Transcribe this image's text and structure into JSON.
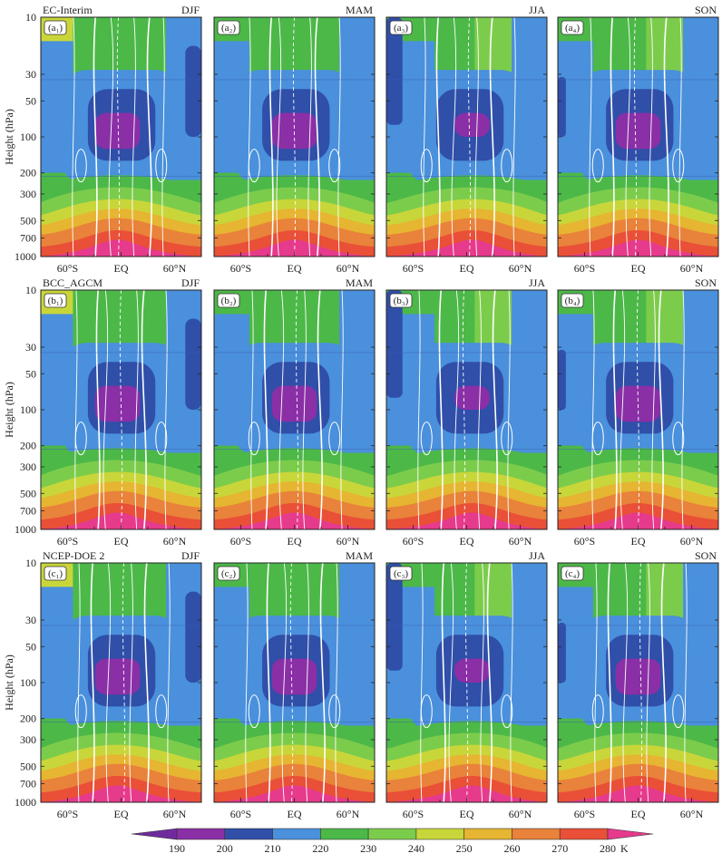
{
  "chart_data": {
    "type": "heatmap",
    "description_rows": [
      {
        "row_title": "EC-Interim",
        "panels": [
          {
            "label": "(a₁)",
            "season": "DJF"
          },
          {
            "label": "(a₂)",
            "season": "MAM"
          },
          {
            "label": "(a₃)",
            "season": "JJA"
          },
          {
            "label": "(a₄)",
            "season": "SON"
          }
        ]
      },
      {
        "row_title": "BCC_AGCM",
        "panels": [
          {
            "label": "(b₁)",
            "season": "DJF"
          },
          {
            "label": "(b₂)",
            "season": "MAM"
          },
          {
            "label": "(b₃)",
            "season": "JJA"
          },
          {
            "label": "(b₄)",
            "season": "SON"
          }
        ]
      },
      {
        "row_title": "NCEP-DOE 2",
        "panels": [
          {
            "label": "(c₁)",
            "season": "DJF"
          },
          {
            "label": "(c₂)",
            "season": "MAM"
          },
          {
            "label": "(c₃)",
            "season": "JJA"
          },
          {
            "label": "(c₄)",
            "season": "SON"
          }
        ]
      }
    ],
    "ylabel": "Height (hPa)",
    "yticks": [
      "10",
      "30",
      "50",
      "100",
      "200",
      "300",
      "500",
      "700",
      "1000"
    ],
    "yticks_values": [
      10,
      30,
      50,
      100,
      200,
      300,
      500,
      700,
      1000
    ],
    "ylim": [
      1000,
      10
    ],
    "xticks": [
      "60°S",
      "EQ",
      "60°N"
    ],
    "xticks_values": [
      -60,
      0,
      60
    ],
    "xlim": [
      -90,
      90
    ],
    "colorbar": {
      "levels": [
        190,
        200,
        210,
        220,
        230,
        240,
        250,
        260,
        270,
        280
      ],
      "tick_labels": [
        "190",
        "200",
        "210",
        "220",
        "230",
        "240",
        "250",
        "260",
        "270",
        "280"
      ],
      "unit": "K",
      "colors": [
        "#6f2b9b",
        "#8a2fa6",
        "#2f4fa9",
        "#4a90dc",
        "#4cb848",
        "#7ccc4c",
        "#c9d63a",
        "#e6b531",
        "#e9823a",
        "#e95037",
        "#e63a8c"
      ]
    },
    "contour_color": "#ffffff"
  }
}
